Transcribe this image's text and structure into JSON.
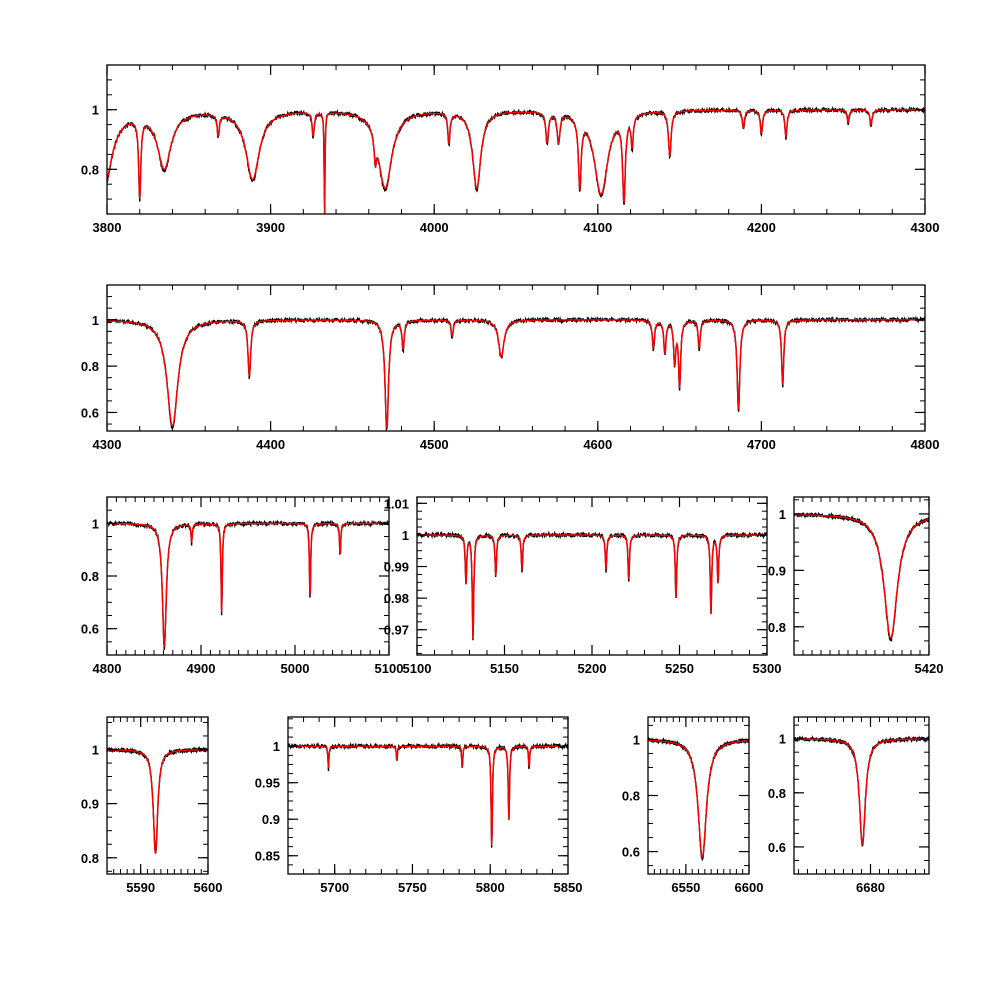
{
  "colors": {
    "observed": "#000000",
    "model": "#ff0000",
    "frame": "#000000",
    "background": "#ffffff"
  },
  "chart_data": [
    {
      "type": "line",
      "x_range": [
        3800,
        4300
      ],
      "y_range": [
        0.65,
        1.15
      ],
      "x_ticks": [
        3800,
        3900,
        4000,
        4100,
        4200,
        4300
      ],
      "x_tick_labels": [
        "3800",
        "3900",
        "4000",
        "4100",
        "4200",
        "4300"
      ],
      "y_ticks": [
        0.6,
        0.8,
        1
      ],
      "y_tick_labels": [
        "0.6",
        "0.8",
        "1"
      ],
      "series": [
        {
          "role": "observed"
        },
        {
          "role": "model"
        }
      ],
      "absorption_lines": [
        {
          "x": 3798,
          "depth": 0.26,
          "width": 6
        },
        {
          "x": 3820,
          "depth": 0.26,
          "width": 0.8
        },
        {
          "x": 3835,
          "depth": 0.19,
          "width": 5
        },
        {
          "x": 3868,
          "depth": 0.07,
          "width": 0.8
        },
        {
          "x": 3889,
          "depth": 0.23,
          "width": 5
        },
        {
          "x": 3926,
          "depth": 0.08,
          "width": 0.8
        },
        {
          "x": 3933,
          "depth": 0.35,
          "width": 0.3
        },
        {
          "x": 3964,
          "depth": 0.08,
          "width": 0.8
        },
        {
          "x": 3970,
          "depth": 0.26,
          "width": 5
        },
        {
          "x": 4009,
          "depth": 0.1,
          "width": 0.8
        },
        {
          "x": 4026,
          "depth": 0.26,
          "width": 3
        },
        {
          "x": 4069,
          "depth": 0.1,
          "width": 1
        },
        {
          "x": 4076,
          "depth": 0.1,
          "width": 1
        },
        {
          "x": 4089,
          "depth": 0.23,
          "width": 1
        },
        {
          "x": 4102,
          "depth": 0.28,
          "width": 5
        },
        {
          "x": 4116,
          "depth": 0.28,
          "width": 1
        },
        {
          "x": 4121,
          "depth": 0.1,
          "width": 0.8
        },
        {
          "x": 4144,
          "depth": 0.15,
          "width": 1
        },
        {
          "x": 4189,
          "depth": 0.06,
          "width": 0.8
        },
        {
          "x": 4200,
          "depth": 0.08,
          "width": 0.8
        },
        {
          "x": 4215,
          "depth": 0.09,
          "width": 0.8
        },
        {
          "x": 4253,
          "depth": 0.04,
          "width": 0.8
        },
        {
          "x": 4267,
          "depth": 0.05,
          "width": 0.8
        }
      ]
    },
    {
      "type": "line",
      "x_range": [
        4300,
        4800
      ],
      "y_range": [
        0.52,
        1.15
      ],
      "x_ticks": [
        4300,
        4400,
        4500,
        4600,
        4700,
        4800
      ],
      "x_tick_labels": [
        "4300",
        "4400",
        "4500",
        "4600",
        "4700",
        "4800"
      ],
      "y_ticks": [
        0.6,
        0.8,
        1
      ],
      "y_tick_labels": [
        "0.6",
        "0.8",
        "1"
      ],
      "series": [
        {
          "role": "observed"
        },
        {
          "role": "model"
        }
      ],
      "absorption_lines": [
        {
          "x": 4340,
          "depth": 0.46,
          "width": 4
        },
        {
          "x": 4387,
          "depth": 0.24,
          "width": 1
        },
        {
          "x": 4471,
          "depth": 0.47,
          "width": 1.3
        },
        {
          "x": 4481,
          "depth": 0.12,
          "width": 0.8
        },
        {
          "x": 4511,
          "depth": 0.07,
          "width": 0.8
        },
        {
          "x": 4541,
          "depth": 0.16,
          "width": 2
        },
        {
          "x": 4634,
          "depth": 0.12,
          "width": 0.8
        },
        {
          "x": 4641,
          "depth": 0.14,
          "width": 0.8
        },
        {
          "x": 4647,
          "depth": 0.18,
          "width": 0.8
        },
        {
          "x": 4650,
          "depth": 0.28,
          "width": 0.8
        },
        {
          "x": 4662,
          "depth": 0.12,
          "width": 0.8
        },
        {
          "x": 4686,
          "depth": 0.39,
          "width": 1
        },
        {
          "x": 4713,
          "depth": 0.28,
          "width": 0.8
        }
      ]
    },
    {
      "type": "line",
      "x_range": [
        4800,
        5100
      ],
      "y_range": [
        0.5,
        1.1
      ],
      "x_ticks": [
        4800,
        4900,
        5000,
        5100
      ],
      "x_tick_labels": [
        "4800",
        "4900",
        "5000",
        "5100"
      ],
      "y_ticks": [
        0.6,
        0.8,
        1
      ],
      "y_tick_labels": [
        "0.6",
        "0.8",
        "1"
      ],
      "series": [
        {
          "role": "observed"
        },
        {
          "role": "model"
        }
      ],
      "absorption_lines": [
        {
          "x": 4861,
          "depth": 0.47,
          "width": 2.5
        },
        {
          "x": 4890,
          "depth": 0.07,
          "width": 0.8
        },
        {
          "x": 4922,
          "depth": 0.34,
          "width": 0.8
        },
        {
          "x": 5016,
          "depth": 0.29,
          "width": 0.8
        },
        {
          "x": 5048,
          "depth": 0.12,
          "width": 0.8
        }
      ]
    },
    {
      "type": "line",
      "x_range": [
        5100,
        5300
      ],
      "y_range": [
        0.962,
        1.012
      ],
      "x_ticks": [
        5100,
        5150,
        5200,
        5250,
        5300
      ],
      "x_tick_labels": [
        "5100",
        "5150",
        "5200",
        "5250",
        "5300"
      ],
      "y_ticks": [
        0.97,
        0.98,
        0.99,
        1,
        1.01
      ],
      "y_tick_labels": [
        "0.97",
        "0.98",
        "0.99",
        "1",
        "1.01"
      ],
      "series": [
        {
          "role": "observed"
        },
        {
          "role": "model"
        }
      ],
      "absorption_lines": [
        {
          "x": 5128,
          "depth": 0.015,
          "width": 0.5
        },
        {
          "x": 5132,
          "depth": 0.033,
          "width": 0.5
        },
        {
          "x": 5145,
          "depth": 0.013,
          "width": 0.5
        },
        {
          "x": 5160,
          "depth": 0.011,
          "width": 0.5
        },
        {
          "x": 5208,
          "depth": 0.011,
          "width": 0.5
        },
        {
          "x": 5221,
          "depth": 0.014,
          "width": 0.5
        },
        {
          "x": 5248,
          "depth": 0.02,
          "width": 0.5
        },
        {
          "x": 5268,
          "depth": 0.025,
          "width": 0.5
        },
        {
          "x": 5272,
          "depth": 0.015,
          "width": 0.5
        }
      ]
    },
    {
      "type": "line",
      "x_range": [
        5390,
        5420
      ],
      "y_range": [
        0.75,
        1.03
      ],
      "x_ticks": [
        5420
      ],
      "x_tick_labels": [
        "5420"
      ],
      "y_ticks": [
        0.8,
        0.9,
        1
      ],
      "y_tick_labels": [
        "0.8",
        "0.9",
        "1"
      ],
      "series": [
        {
          "role": "observed"
        },
        {
          "role": "model"
        }
      ],
      "absorption_lines": [
        {
          "x": 5411.5,
          "depth": 0.22,
          "width": 1.8
        }
      ]
    },
    {
      "type": "line",
      "x_range": [
        5585,
        5600
      ],
      "y_range": [
        0.77,
        1.06
      ],
      "x_ticks": [
        5590,
        5600
      ],
      "x_tick_labels": [
        "5590",
        "5600"
      ],
      "y_ticks": [
        0.8,
        0.9,
        1
      ],
      "y_tick_labels": [
        "0.8",
        "0.9",
        "1"
      ],
      "series": [
        {
          "role": "observed"
        },
        {
          "role": "model"
        }
      ],
      "absorption_lines": [
        {
          "x": 5592.2,
          "depth": 0.19,
          "width": 0.4
        }
      ]
    },
    {
      "type": "line",
      "x_range": [
        5670,
        5850
      ],
      "y_range": [
        0.825,
        1.04
      ],
      "x_ticks": [
        5700,
        5750,
        5800,
        5850
      ],
      "x_tick_labels": [
        "5700",
        "5750",
        "5800",
        "5850"
      ],
      "y_ticks": [
        0.85,
        0.9,
        0.95,
        1
      ],
      "y_tick_labels": [
        "0.85",
        "0.9",
        "0.95",
        "1"
      ],
      "series": [
        {
          "role": "observed"
        },
        {
          "role": "model"
        }
      ],
      "absorption_lines": [
        {
          "x": 5696,
          "depth": 0.03,
          "width": 0.4
        },
        {
          "x": 5740,
          "depth": 0.02,
          "width": 0.4
        },
        {
          "x": 5782,
          "depth": 0.03,
          "width": 0.4
        },
        {
          "x": 5801,
          "depth": 0.14,
          "width": 0.5
        },
        {
          "x": 5812,
          "depth": 0.1,
          "width": 0.5
        },
        {
          "x": 5825,
          "depth": 0.03,
          "width": 0.4
        }
      ]
    },
    {
      "type": "line",
      "x_range": [
        6520,
        6600
      ],
      "y_range": [
        0.52,
        1.08
      ],
      "x_ticks": [
        6550,
        6600
      ],
      "x_tick_labels": [
        "6550",
        "6600"
      ],
      "y_ticks": [
        0.6,
        0.8,
        1
      ],
      "y_tick_labels": [
        "0.6",
        "0.8",
        "1"
      ],
      "series": [
        {
          "role": "observed"
        },
        {
          "role": "model"
        }
      ],
      "absorption_lines": [
        {
          "x": 6563,
          "depth": 0.42,
          "width": 4
        }
      ]
    },
    {
      "type": "line",
      "x_range": [
        6663,
        6693
      ],
      "y_range": [
        0.5,
        1.08
      ],
      "x_ticks": [
        6680
      ],
      "x_tick_labels": [
        "6680"
      ],
      "y_ticks": [
        0.6,
        0.8,
        1
      ],
      "y_tick_labels": [
        "0.6",
        "0.8",
        "1"
      ],
      "series": [
        {
          "role": "observed"
        },
        {
          "role": "model"
        }
      ],
      "absorption_lines": [
        {
          "x": 6678.2,
          "depth": 0.39,
          "width": 0.8
        }
      ]
    }
  ]
}
